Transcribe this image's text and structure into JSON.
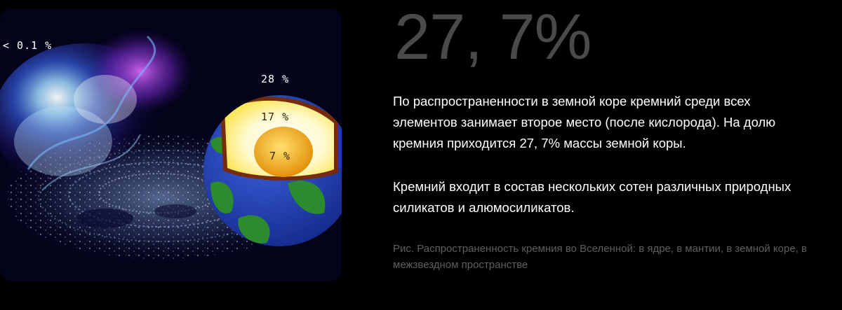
{
  "figure": {
    "labels": {
      "interstellar": "< 0.1 %",
      "crust": "28 %",
      "mantle": "17 %",
      "core": "7 %"
    }
  },
  "stat": {
    "value": "27, 7%"
  },
  "paragraphs": [
    "По распространенности в земной коре кремний среди всех элементов занимает второе место (после кислорода). На долю кремния приходится 27, 7% массы земной коры.",
    "Кремний входит в состав нескольких сотен различных природных силикатов и алюмосиликатов."
  ],
  "caption": "Рис. Распространенность кремния во Вселенной: в ядре, в мантии, в земной коре, в межзвездном пространстве",
  "colors": {
    "background": "#000000",
    "stat_number": "#4a4a4a",
    "caption": "#5e5e5e",
    "core": "#f2a800",
    "mantle": "#fff49a",
    "ocean": "#1e3cb8",
    "land": "#2d8a2d"
  }
}
